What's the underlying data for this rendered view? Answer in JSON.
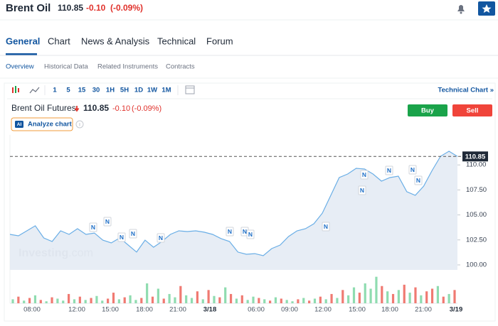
{
  "header": {
    "title": "Brent Oil",
    "price": "110.85",
    "change": "-0.10",
    "change_pct": "(-0.09%)"
  },
  "tabs": [
    "General",
    "Chart",
    "News & Analysis",
    "Technical",
    "Forum"
  ],
  "subtabs": [
    "Overview",
    "Historical Data",
    "Related Instruments",
    "Contracts"
  ],
  "toolbar": {
    "intervals": [
      "1",
      "5",
      "15",
      "30",
      "1H",
      "5H",
      "1D",
      "1W",
      "1M"
    ],
    "technical_chart": "Technical Chart »"
  },
  "chart_header": {
    "name": "Brent Oil Futures",
    "price": "110.85",
    "change": "-0.10",
    "change_pct": "(-0.09%)",
    "buy": "Buy",
    "sell": "Sell",
    "ai_badge": "AI",
    "analyze": "Analyze chart"
  },
  "chart_data": {
    "type": "line",
    "x_labels": [
      "08:00",
      "12:00",
      "15:00",
      "18:00",
      "21:00",
      "3/18",
      "06:00",
      "09:00",
      "12:00",
      "15:00",
      "18:00",
      "21:00",
      "3/19"
    ],
    "values": [
      103.05,
      102.91,
      103.41,
      103.91,
      102.7,
      102.34,
      103.41,
      103.05,
      103.62,
      103.05,
      103.19,
      102.48,
      102.2,
      102.7,
      101.99,
      101.28,
      102.48,
      101.77,
      102.34,
      103.05,
      103.41,
      103.34,
      103.41,
      103.27,
      103.05,
      102.63,
      102.34,
      101.28,
      101.06,
      101.13,
      100.92,
      101.63,
      101.99,
      102.84,
      103.41,
      103.62,
      104.12,
      105.18,
      106.96,
      108.74,
      109.09,
      109.66,
      109.59,
      109.09,
      108.38,
      108.74,
      108.88,
      107.32,
      106.96,
      107.88,
      109.45,
      110.87,
      111.37,
      110.85
    ],
    "color": "#6aaee6",
    "ylim": [
      99.5,
      113
    ],
    "yticks": [
      {
        "value": 100,
        "label": "100.00"
      },
      {
        "value": 102.5,
        "label": "102.50"
      },
      {
        "value": 105,
        "label": "105.00"
      },
      {
        "value": 107.5,
        "label": "107.50"
      },
      {
        "value": 110,
        "label": "110.00"
      }
    ],
    "last_price": {
      "value": 110.85,
      "label": "110.85"
    },
    "watermark": [
      "Investing",
      ".com"
    ],
    "news_label": "N",
    "volume": {
      "vlim": [
        0,
        45
      ],
      "up_color": "#8fdcb0",
      "down_color": "#f07a72",
      "values": [
        6,
        10,
        4,
        8,
        12,
        5,
        3,
        9,
        7,
        4,
        14,
        6,
        10,
        5,
        8,
        11,
        4,
        7,
        16,
        6,
        9,
        12,
        5,
        8,
        30,
        10,
        22,
        7,
        14,
        9,
        26,
        12,
        8,
        18,
        6,
        20,
        11,
        9,
        24,
        14,
        7,
        12,
        5,
        10,
        8,
        6,
        4,
        9,
        7,
        5,
        3,
        6,
        8,
        4,
        7,
        10,
        6,
        14,
        8,
        20,
        12,
        24,
        16,
        30,
        22,
        40,
        26,
        18,
        14,
        20,
        28,
        16,
        24,
        12,
        18,
        22,
        26,
        10,
        14,
        20
      ],
      "directions": [
        "up",
        "down",
        "up",
        "down",
        "up",
        "down",
        "up",
        "down",
        "up",
        "up",
        "down",
        "up",
        "down",
        "up",
        "down",
        "up",
        "up",
        "down",
        "down",
        "up",
        "down",
        "up",
        "up",
        "down",
        "up",
        "down",
        "up",
        "down",
        "up",
        "up",
        "down",
        "up",
        "up",
        "down",
        "up",
        "down",
        "up",
        "down",
        "up",
        "down",
        "up",
        "down",
        "up",
        "up",
        "down",
        "up",
        "down",
        "up",
        "down",
        "up",
        "up",
        "down",
        "up",
        "down",
        "up",
        "down",
        "up",
        "down",
        "up",
        "down",
        "up",
        "up",
        "down",
        "up",
        "up",
        "up",
        "down",
        "up",
        "down",
        "up",
        "down",
        "up",
        "down",
        "up",
        "down",
        "down",
        "up",
        "down",
        "up",
        "down"
      ]
    }
  }
}
